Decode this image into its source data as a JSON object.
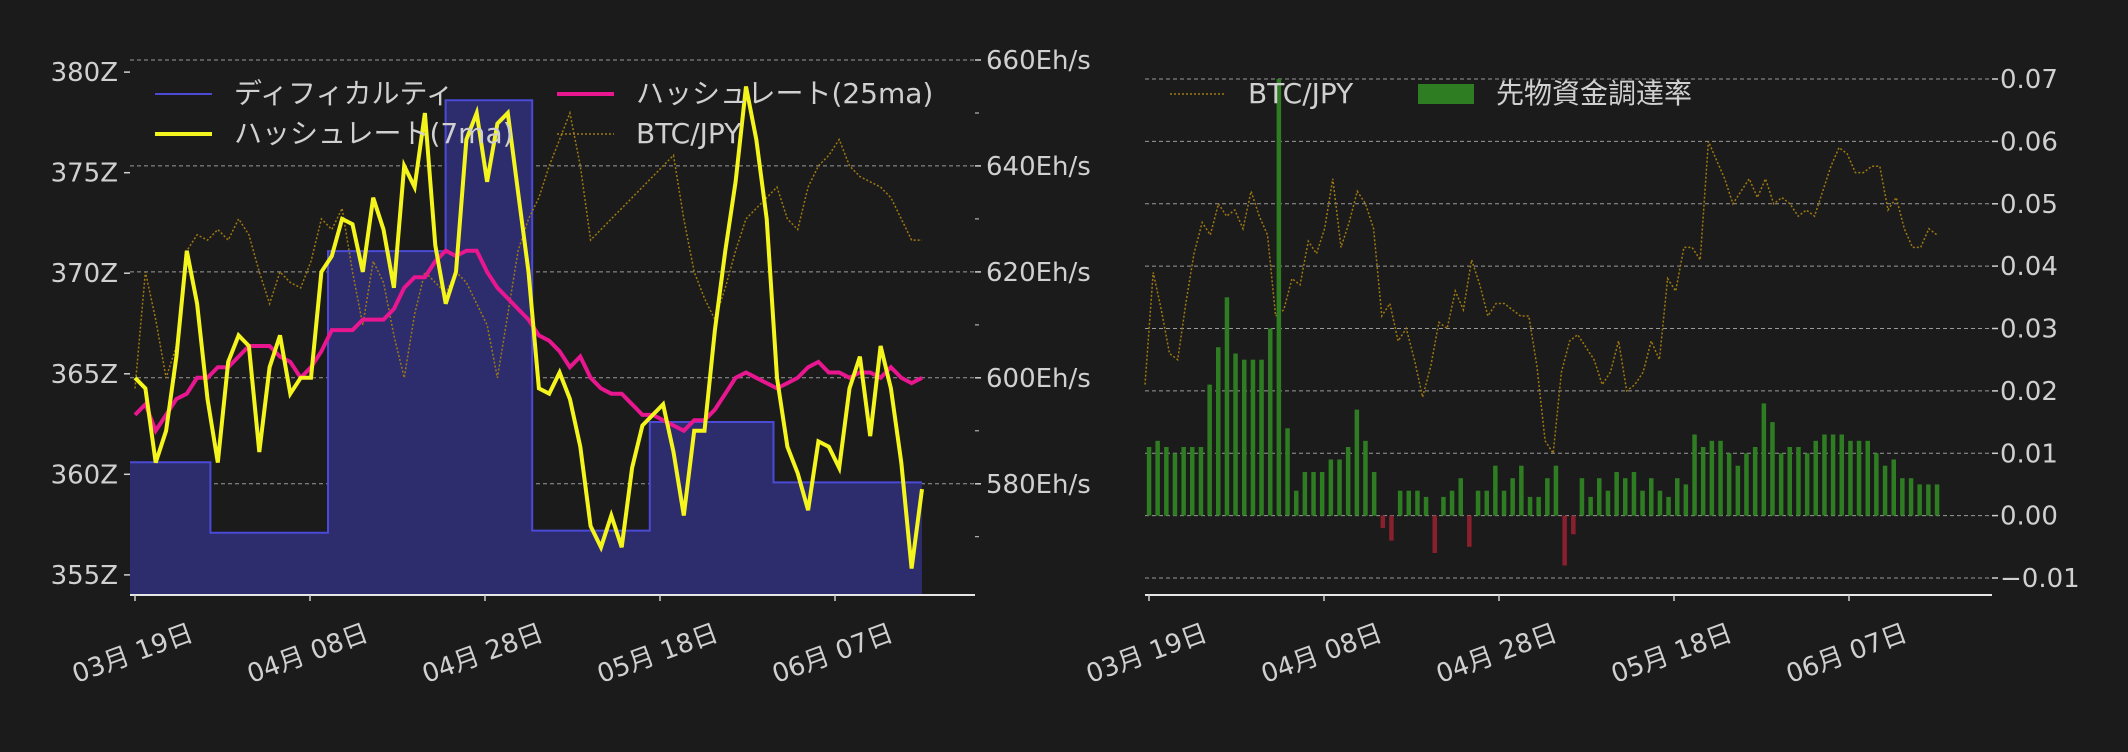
{
  "colors": {
    "background": "#1b1b1b",
    "grid": "#9a9a9a",
    "axis_text": "#d0d0d0",
    "difficulty_line": "#4a4ad6",
    "difficulty_fill": "#2d2d6e",
    "hashrate_7ma": "#f5f51e",
    "hashrate_25ma": "#e8168f",
    "btc_jpy": "#a0790f",
    "funding_pos": "#2e7d22",
    "funding_neg": "#8a1f2e"
  },
  "chart_data": [
    {
      "type": "line",
      "title": "",
      "legend_position": "top",
      "grid": true,
      "x_ticks": [
        "03月 19日",
        "04月 08日",
        "04月 28日",
        "05月 18日",
        "06月 07日"
      ],
      "left_axis": {
        "ticks": [
          "355Z",
          "360Z",
          "365Z",
          "370Z",
          "375Z",
          "380Z"
        ],
        "range": [
          354,
          381
        ]
      },
      "right_axis": {
        "ticks": [
          "580Eh/s",
          "600Eh/s",
          "620Eh/s",
          "640Eh/s",
          "660Eh/s"
        ],
        "range": [
          559,
          660
        ]
      },
      "legend": [
        {
          "label": "ディフィカルティ",
          "key": "difficulty"
        },
        {
          "label": "ハッシュレート(25ma)",
          "key": "hashrate_25ma"
        },
        {
          "label": "ハッシュレート(7ma)",
          "key": "hashrate_7ma"
        },
        {
          "label": "BTC/JPY",
          "key": "btc_jpy"
        }
      ],
      "series": [
        {
          "key": "difficulty",
          "name": "ディフィカルティ",
          "axis": "left",
          "type": "step-area",
          "points": [
            [
              0,
              360.6
            ],
            [
              13,
              360.6
            ],
            [
              13,
              357.1
            ],
            [
              32,
              357.1
            ],
            [
              32,
              371.1
            ],
            [
              45,
              371.1
            ],
            [
              45,
              371.1
            ],
            [
              51,
              371.1
            ],
            [
              51,
              378.6
            ],
            [
              65,
              378.6
            ],
            [
              65,
              357.2
            ],
            [
              84,
              357.2
            ],
            [
              84,
              362.6
            ],
            [
              104,
              362.6
            ],
            [
              104,
              359.6
            ],
            [
              128,
              359.6
            ]
          ]
        },
        {
          "key": "hashrate_7ma",
          "name": "ハッシュレート(7ma)",
          "axis": "right",
          "values": [
            600,
            598,
            584,
            590,
            604,
            624,
            614,
            596,
            584,
            603,
            608,
            606,
            586,
            602,
            608,
            597,
            600,
            600,
            620,
            623,
            630,
            629,
            620,
            634,
            628,
            617,
            640,
            636,
            650,
            625,
            614,
            620,
            645,
            650,
            637,
            648,
            650,
            635,
            620,
            598,
            597,
            601,
            596,
            587,
            572,
            568,
            574,
            568,
            583,
            591,
            593,
            595,
            586,
            574,
            590,
            590,
            609,
            624,
            637,
            655,
            645,
            630,
            600,
            587,
            582,
            575,
            588,
            587,
            583,
            598,
            604,
            589,
            606,
            598,
            584,
            564,
            579
          ]
        },
        {
          "key": "hashrate_25ma",
          "name": "ハッシュレート(25ma)",
          "axis": "right",
          "values": [
            593,
            595,
            590,
            593,
            596,
            597,
            600,
            600,
            602,
            602,
            604,
            606,
            606,
            606,
            604,
            603,
            600,
            602,
            605,
            609,
            609,
            609,
            611,
            611,
            611,
            613,
            617,
            619,
            619,
            622,
            624,
            623,
            624,
            624,
            620,
            617,
            615,
            613,
            611,
            608,
            607,
            605,
            602,
            604,
            600,
            598,
            597,
            597,
            595,
            593,
            593,
            592,
            591,
            590,
            592,
            592,
            594,
            597,
            600,
            601,
            600,
            599,
            598,
            599,
            600,
            602,
            603,
            601,
            601,
            600,
            601,
            601,
            600,
            602,
            600,
            599,
            600
          ]
        },
        {
          "key": "btc_jpy",
          "name": "BTC/JPY",
          "axis": "hidden",
          "values": [
            598,
            620,
            611,
            600,
            606,
            624,
            627,
            626,
            628,
            626,
            630,
            627,
            620,
            614,
            620,
            618,
            617,
            622,
            630,
            628,
            632,
            620,
            610,
            622,
            618,
            608,
            600,
            612,
            620,
            618,
            616,
            620,
            618,
            614,
            610,
            600,
            612,
            624,
            630,
            634,
            640,
            645,
            650,
            640,
            626,
            628,
            630,
            632,
            634,
            636,
            638,
            640,
            642,
            630,
            620,
            615,
            611,
            617,
            624,
            630,
            632,
            634,
            636,
            630,
            628,
            636,
            640,
            642,
            645,
            640,
            638,
            637,
            636,
            634,
            630,
            626,
            626
          ]
        }
      ]
    },
    {
      "type": "bar",
      "title": "",
      "legend_position": "top",
      "grid": true,
      "x_ticks": [
        "03月 19日",
        "04月 08日",
        "04月 28日",
        "05月 18日",
        "06月 07日"
      ],
      "right_axis": {
        "ticks": [
          "−0.01",
          "0.00",
          "0.01",
          "0.02",
          "0.03",
          "0.04",
          "0.05",
          "0.06",
          "0.07"
        ],
        "range": [
          -0.013,
          0.072
        ]
      },
      "legend": [
        {
          "label": "BTC/JPY",
          "key": "btc_jpy"
        },
        {
          "label": "先物資金調達率",
          "key": "funding"
        }
      ],
      "series": [
        {
          "key": "funding",
          "name": "先物資金調達率",
          "type": "bar",
          "values": [
            0.011,
            0.012,
            0.011,
            0.01,
            0.011,
            0.011,
            0.011,
            0.021,
            0.027,
            0.035,
            0.026,
            0.025,
            0.025,
            0.025,
            0.03,
            0.07,
            0.014,
            0.004,
            0.007,
            0.007,
            0.007,
            0.009,
            0.009,
            0.011,
            0.017,
            0.012,
            0.007,
            -0.002,
            -0.004,
            0.004,
            0.004,
            0.004,
            0.003,
            -0.006,
            0.003,
            0.004,
            0.006,
            -0.005,
            0.004,
            0.004,
            0.008,
            0.004,
            0.006,
            0.008,
            0.003,
            0.003,
            0.006,
            0.008,
            -0.008,
            -0.003,
            0.006,
            0.003,
            0.006,
            0.004,
            0.007,
            0.006,
            0.007,
            0.004,
            0.006,
            0.004,
            0.003,
            0.006,
            0.005,
            0.013,
            0.011,
            0.012,
            0.012,
            0.01,
            0.008,
            0.01,
            0.011,
            0.018,
            0.015,
            0.01,
            0.011,
            0.011,
            0.01,
            0.012,
            0.013,
            0.013,
            0.013,
            0.012,
            0.012,
            0.012,
            0.01,
            0.008,
            0.009,
            0.006,
            0.006,
            0.005,
            0.005,
            0.005
          ]
        },
        {
          "key": "btc_jpy",
          "name": "BTC/JPY",
          "type": "line",
          "values": [
            0.021,
            0.039,
            0.033,
            0.026,
            0.025,
            0.034,
            0.042,
            0.047,
            0.045,
            0.05,
            0.048,
            0.049,
            0.046,
            0.052,
            0.048,
            0.045,
            0.032,
            0.033,
            0.038,
            0.037,
            0.044,
            0.042,
            0.046,
            0.054,
            0.043,
            0.047,
            0.052,
            0.05,
            0.046,
            0.032,
            0.034,
            0.028,
            0.03,
            0.025,
            0.019,
            0.024,
            0.031,
            0.03,
            0.036,
            0.033,
            0.041,
            0.037,
            0.032,
            0.034,
            0.034,
            0.033,
            0.032,
            0.032,
            0.024,
            0.012,
            0.01,
            0.023,
            0.028,
            0.029,
            0.027,
            0.025,
            0.021,
            0.023,
            0.028,
            0.02,
            0.021,
            0.023,
            0.028,
            0.025,
            0.038,
            0.036,
            0.043,
            0.043,
            0.041,
            0.06,
            0.057,
            0.054,
            0.05,
            0.052,
            0.054,
            0.051,
            0.054,
            0.05,
            0.051,
            0.05,
            0.048,
            0.049,
            0.048,
            0.052,
            0.056,
            0.059,
            0.058,
            0.055,
            0.055,
            0.056,
            0.056,
            0.049,
            0.051,
            0.046,
            0.043,
            0.043,
            0.046,
            0.045
          ]
        }
      ]
    }
  ]
}
